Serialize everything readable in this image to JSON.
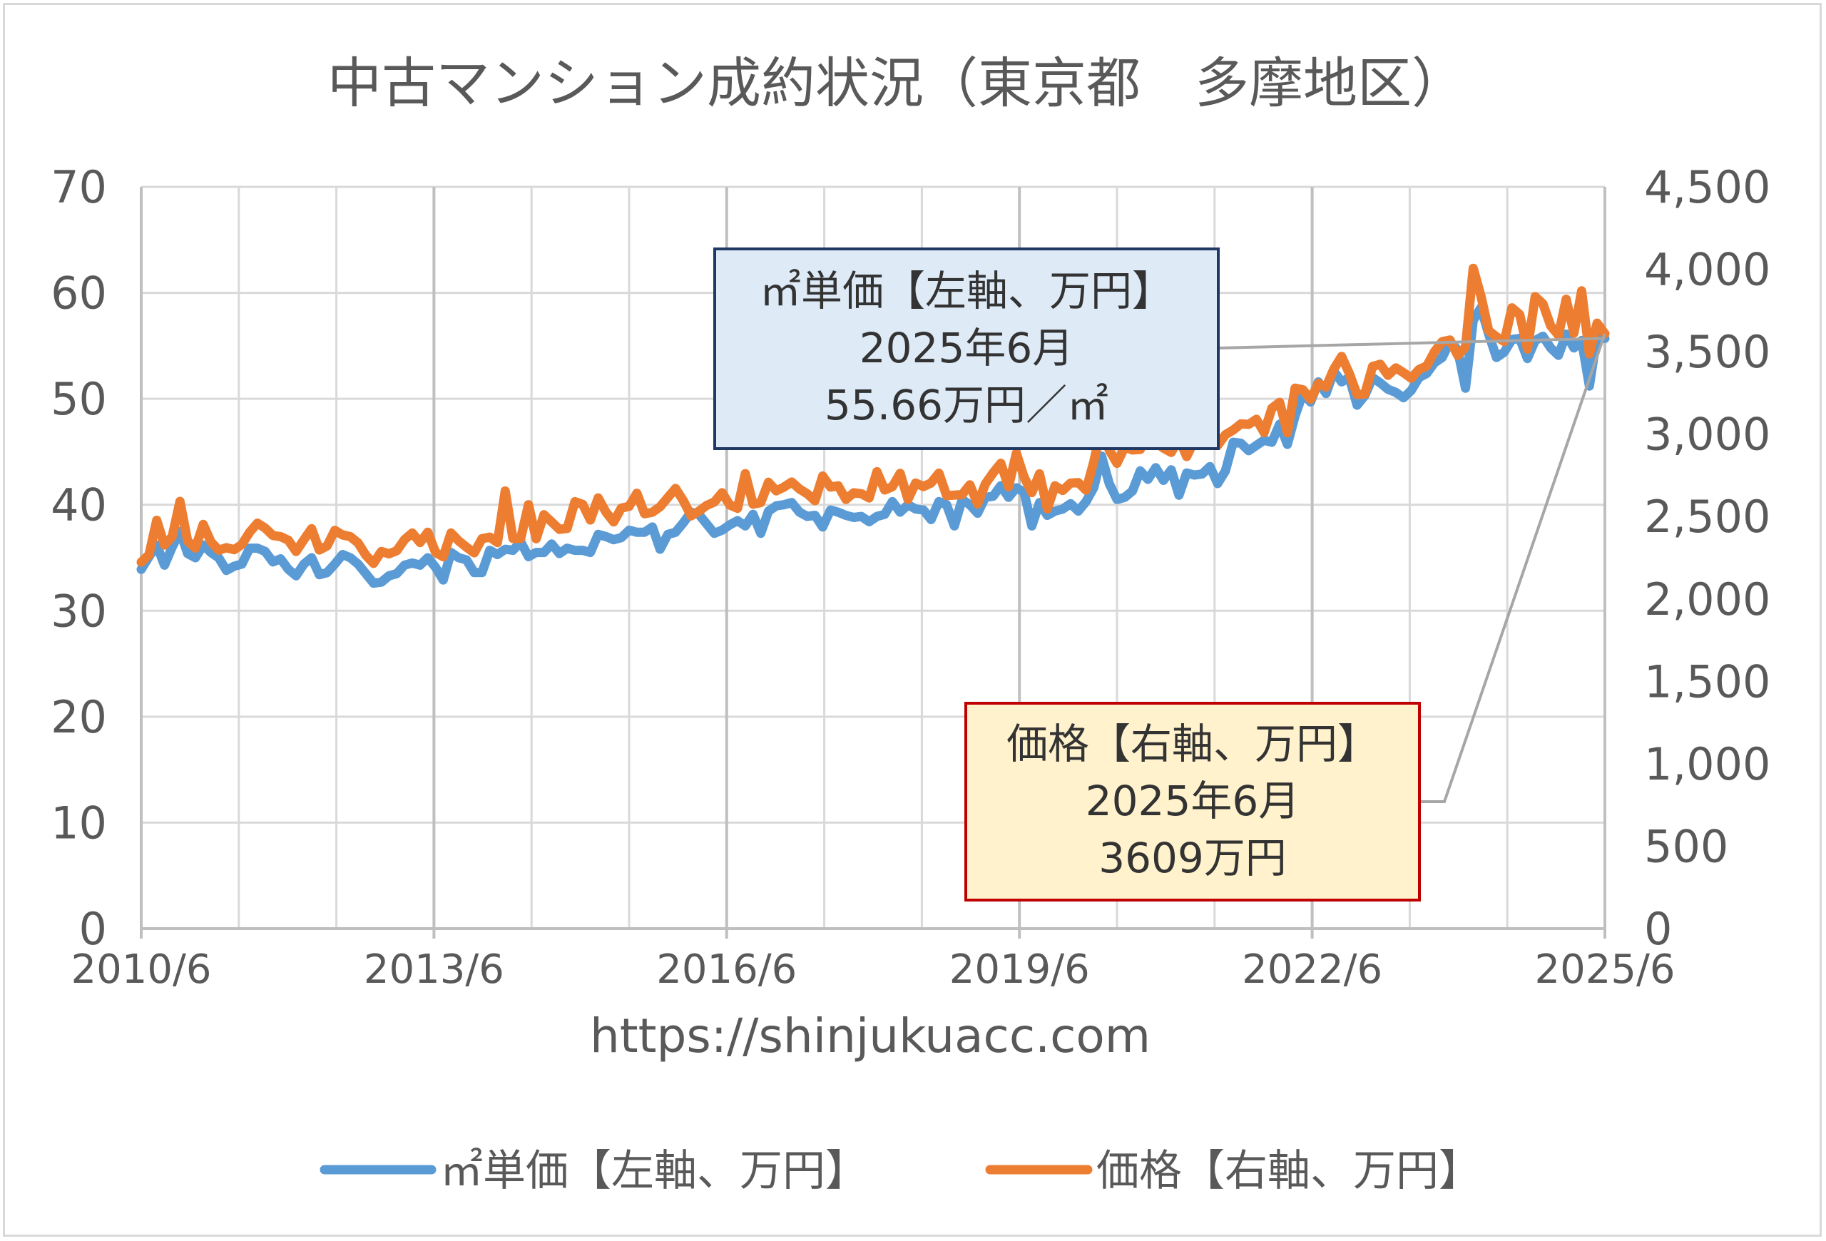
{
  "chart_data": {
    "type": "line",
    "title": "中古マンション成約状況（東京都　多摩地区）",
    "x_tick_labels": [
      "2010/6",
      "2013/6",
      "2016/6",
      "2019/6",
      "2022/6",
      "2025/6"
    ],
    "x_range": [
      "2010/6",
      "2025/6"
    ],
    "y_left": {
      "range": [
        0,
        70
      ],
      "ticks": [
        "0",
        "10",
        "20",
        "30",
        "40",
        "50",
        "60",
        "70"
      ]
    },
    "y_right": {
      "range": [
        0,
        4500
      ],
      "ticks": [
        "0",
        "500",
        "1,000",
        "1,500",
        "2,000",
        "2,500",
        "3,000",
        "3,500",
        "4,000",
        "4,500"
      ]
    },
    "grid": true,
    "legend_position": "bottom",
    "series": [
      {
        "name": "㎡単価【左軸、万円】",
        "axis": "left",
        "color": "#5B9BD5",
        "values": [
          33.9,
          35.1,
          36.2,
          34.3,
          36.0,
          37.5,
          35.4,
          35.0,
          36.2,
          35.5,
          35.0,
          33.8,
          34.2,
          34.4,
          35.9,
          35.9,
          35.6,
          34.6,
          34.9,
          33.9,
          33.3,
          34.4,
          35.0,
          33.4,
          33.6,
          34.4,
          35.3,
          35.0,
          34.4,
          33.5,
          32.6,
          32.7,
          33.3,
          33.5,
          34.3,
          34.5,
          34.3,
          35.0,
          34.1,
          32.9,
          35.5,
          35.0,
          34.8,
          33.6,
          33.6,
          35.7,
          35.3,
          35.8,
          35.7,
          36.5,
          35.1,
          35.5,
          35.5,
          36.3,
          35.4,
          35.9,
          35.7,
          35.7,
          35.5,
          37.2,
          37.0,
          36.7,
          36.9,
          37.6,
          37.4,
          37.4,
          37.9,
          35.8,
          37.2,
          37.4,
          38.3,
          39.3,
          39.1,
          38.2,
          37.3,
          37.6,
          38.1,
          38.5,
          38.0,
          39.1,
          37.3,
          39.4,
          39.9,
          40.0,
          40.2,
          39.3,
          38.9,
          39.0,
          37.9,
          39.5,
          39.3,
          39.0,
          38.8,
          38.9,
          38.4,
          38.9,
          39.1,
          40.3,
          39.3,
          40.0,
          39.6,
          39.5,
          38.6,
          40.3,
          40.0,
          38.0,
          40.5,
          40.0,
          39.2,
          40.7,
          40.8,
          41.8,
          40.7,
          41.6,
          41.2,
          38.0,
          40.2,
          39.0,
          39.4,
          39.6,
          40.1,
          39.4,
          40.3,
          41.6,
          44.6,
          42.0,
          40.5,
          40.7,
          41.3,
          43.2,
          42.4,
          43.5,
          42.3,
          43.3,
          40.9,
          43.0,
          42.8,
          42.9,
          43.6,
          42.0,
          43.2,
          45.9,
          45.8,
          45.1,
          45.6,
          46.1,
          45.9,
          47.6,
          45.7,
          48.4,
          50.5,
          49.7,
          51.6,
          50.5,
          52.6,
          51.6,
          52.0,
          49.4,
          50.3,
          52.0,
          51.5,
          50.9,
          50.6,
          50.1,
          50.8,
          52.0,
          52.4,
          53.4,
          53.9,
          55.4,
          54.6,
          51.0,
          57.4,
          58.6,
          56.1,
          53.9,
          54.4,
          55.6,
          55.7,
          53.8,
          55.5,
          55.9,
          54.8,
          54.1,
          56.1,
          54.8,
          55.5,
          51.2,
          56.0,
          55.7
        ]
      },
      {
        "name": "価格【右軸、万円】",
        "axis": "right",
        "color": "#ED7D31",
        "values": [
          2223,
          2268,
          2477,
          2327,
          2378,
          2592,
          2351,
          2309,
          2452,
          2347,
          2296,
          2311,
          2299,
          2330,
          2405,
          2460,
          2430,
          2385,
          2378,
          2356,
          2288,
          2359,
          2426,
          2297,
          2322,
          2416,
          2388,
          2378,
          2340,
          2265,
          2216,
          2288,
          2274,
          2293,
          2360,
          2400,
          2342,
          2405,
          2282,
          2256,
          2400,
          2352,
          2314,
          2280,
          2366,
          2375,
          2342,
          2655,
          2367,
          2367,
          2572,
          2365,
          2511,
          2467,
          2422,
          2428,
          2590,
          2574,
          2479,
          2613,
          2528,
          2467,
          2551,
          2562,
          2641,
          2517,
          2526,
          2559,
          2615,
          2670,
          2596,
          2504,
          2532,
          2567,
          2588,
          2644,
          2570,
          2550,
          2760,
          2575,
          2585,
          2708,
          2656,
          2679,
          2709,
          2667,
          2638,
          2596,
          2746,
          2679,
          2686,
          2604,
          2644,
          2638,
          2613,
          2772,
          2661,
          2681,
          2762,
          2604,
          2703,
          2682,
          2704,
          2763,
          2627,
          2630,
          2633,
          2692,
          2576,
          2698,
          2765,
          2823,
          2681,
          2884,
          2740,
          2645,
          2759,
          2547,
          2686,
          2658,
          2703,
          2706,
          2660,
          2831,
          3040,
          2903,
          2823,
          2922,
          2904,
          2907,
          2999,
          2950,
          2915,
          2889,
          2973,
          2864,
          2962,
          2997,
          2983,
          2931,
          2997,
          3025,
          3062,
          3059,
          3090,
          3009,
          3157,
          3193,
          3008,
          3279,
          3269,
          3211,
          3307,
          3285,
          3395,
          3471,
          3368,
          3240,
          3243,
          3410,
          3424,
          3357,
          3402,
          3373,
          3339,
          3392,
          3413,
          3500,
          3561,
          3571,
          3477,
          3528,
          4006,
          3837,
          3627,
          3590,
          3562,
          3766,
          3726,
          3516,
          3834,
          3791,
          3657,
          3599,
          3818,
          3613,
          3869,
          3487,
          3673,
          3609
        ]
      }
    ],
    "annotations": [
      {
        "series": "㎡単価【左軸、万円】",
        "lines": [
          "㎡単価【左軸、万円】",
          "2025年6月",
          "55.66万円／㎡"
        ],
        "fill": "#DEEBF7",
        "border": "#1F3864"
      },
      {
        "series": "価格【右軸、万円】",
        "lines": [
          "価格【右軸、万円】",
          "2025年6月",
          "3609万円"
        ],
        "fill": "#FFF2CC",
        "border": "#C00000"
      }
    ],
    "source_text": "https://shinjukuacc.com"
  }
}
